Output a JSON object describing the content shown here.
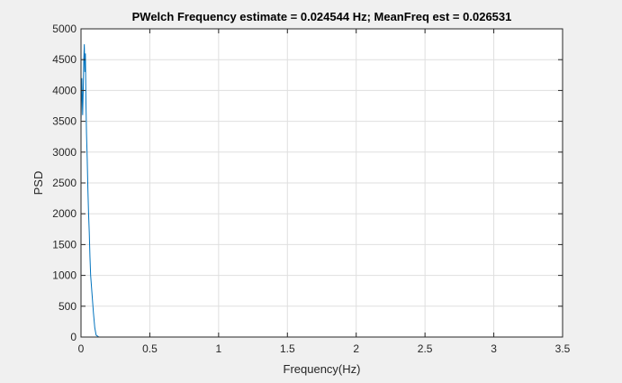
{
  "chart_data": {
    "type": "line",
    "title": "PWelch Frequency estimate = 0.024544 Hz; MeanFreq est = 0.026531",
    "xlabel": "Frequency(Hz)",
    "ylabel": "PSD",
    "xlim": [
      0,
      3.5
    ],
    "ylim": [
      0,
      5000
    ],
    "xticks": [
      0,
      0.5,
      1,
      1.5,
      2,
      2.5,
      3,
      3.5
    ],
    "xtick_labels": [
      "0",
      "0.5",
      "1",
      "1.5",
      "2",
      "2.5",
      "3",
      "3.5"
    ],
    "yticks": [
      0,
      500,
      1000,
      1500,
      2000,
      2500,
      3000,
      3500,
      4000,
      4500,
      5000
    ],
    "ytick_labels": [
      "0",
      "500",
      "1000",
      "1500",
      "2000",
      "2500",
      "3000",
      "3500",
      "4000",
      "4500",
      "5000"
    ],
    "grid": true,
    "series": [
      {
        "color": "#0072bd",
        "x": [
          0,
          0.006,
          0.012,
          0.016,
          0.02,
          0.024,
          0.028,
          0.032,
          0.036,
          0.04,
          0.045,
          0.05,
          0.055,
          0.06,
          0.065,
          0.07,
          0.08,
          0.09,
          0.1,
          0.11,
          0.13,
          0.2,
          0.5,
          1.0,
          1.5,
          2.0,
          2.5,
          3.0,
          3.14
        ],
        "y": [
          3500,
          4200,
          3600,
          4000,
          4500,
          4750,
          4300,
          4600,
          3800,
          3300,
          2900,
          2400,
          2000,
          1700,
          1300,
          1000,
          700,
          400,
          150,
          30,
          0,
          0,
          0,
          0,
          0,
          0,
          0,
          0,
          0
        ]
      }
    ]
  }
}
